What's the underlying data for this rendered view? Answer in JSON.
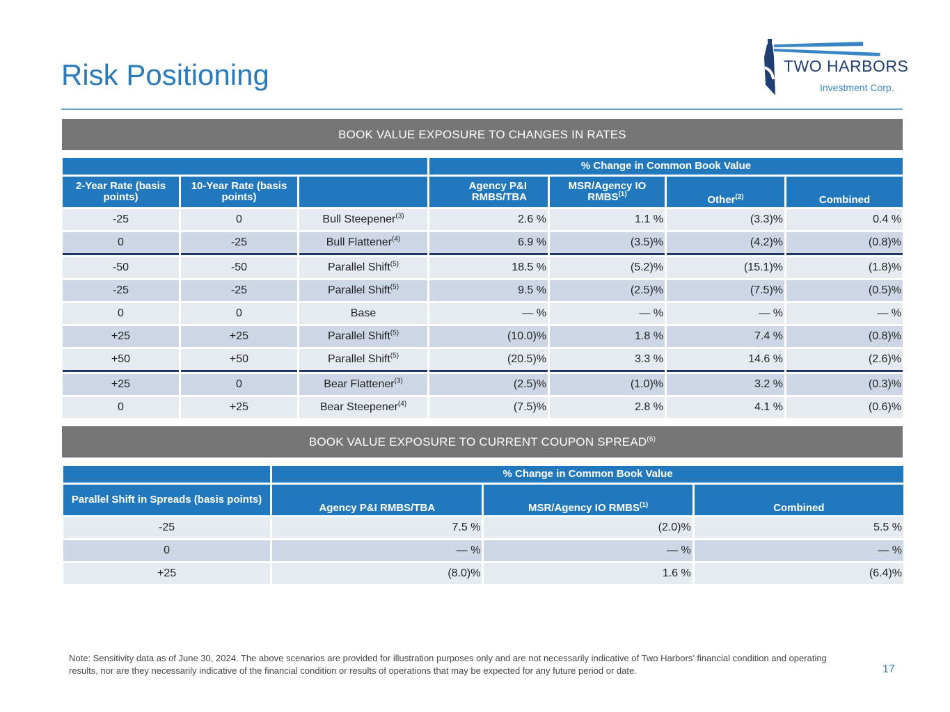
{
  "title": "Risk Positioning",
  "logo": {
    "name": "TWO HARBORS",
    "sub": "Investment Corp."
  },
  "section1": {
    "band": "BOOK VALUE EXPOSURE TO CHANGES IN RATES",
    "group_header": "% Change in Common Book Value",
    "columns": [
      "2-Year Rate (basis points)",
      "10-Year Rate (basis points)",
      "",
      "Agency P&I RMBS/TBA",
      "MSR/Agency IO RMBS",
      "Other",
      "Combined"
    ],
    "col_notes": {
      "msr": "(1)",
      "other": "(2)"
    },
    "rows": [
      [
        "-25",
        "0",
        "Bull Steepener",
        "(3)",
        "2.6 %",
        "1.1 %",
        "(3.3)%",
        "0.4 %"
      ],
      [
        "0",
        "-25",
        "Bull Flattener",
        "(4)",
        "6.9 %",
        "(3.5)%",
        "(4.2)%",
        "(0.8)%"
      ],
      [
        "-50",
        "-50",
        "Parallel Shift",
        "(5)",
        "18.5 %",
        "(5.2)%",
        "(15.1)%",
        "(1.8)%"
      ],
      [
        "-25",
        "-25",
        "Parallel Shift",
        "(5)",
        "9.5 %",
        "(2.5)%",
        "(7.5)%",
        "(0.5)%"
      ],
      [
        "0",
        "0",
        "Base",
        "",
        "— %",
        "— %",
        "— %",
        "— %"
      ],
      [
        "+25",
        "+25",
        "Parallel Shift",
        "(5)",
        "(10.0)%",
        "1.8 %",
        "7.4 %",
        "(0.8)%"
      ],
      [
        "+50",
        "+50",
        "Parallel Shift",
        "(5)",
        "(20.5)%",
        "3.3 %",
        "14.6 %",
        "(2.6)%"
      ],
      [
        "+25",
        "0",
        "Bear Flattener",
        "(3)",
        "(2.5)%",
        "(1.0)%",
        "3.2 %",
        "(0.3)%"
      ],
      [
        "0",
        "+25",
        "Bear Steepener",
        "(4)",
        "(7.5)%",
        "2.8 %",
        "4.1 %",
        "(0.6)%"
      ]
    ]
  },
  "section2": {
    "band": "BOOK VALUE EXPOSURE TO CURRENT COUPON SPREAD",
    "band_note": "(6)",
    "group_header": "% Change in Common Book Value",
    "columns": [
      "Parallel Shift in Spreads (basis points)",
      "Agency P&I RMBS/TBA",
      "MSR/Agency IO RMBS",
      "Combined"
    ],
    "msr_note": "(1)",
    "rows": [
      [
        "-25",
        "7.5 %",
        "(2.0)%",
        "5.5 %"
      ],
      [
        "0",
        "— %",
        "— %",
        "— %"
      ],
      [
        "+25",
        "(8.0)%",
        "1.6 %",
        "(6.4)%"
      ]
    ]
  },
  "note": "Note: Sensitivity data as of June 30, 2024. The above scenarios are provided for illustration purposes only and are not necessarily indicative of Two Harbors’ financial condition and operating results, nor are they necessarily indicative of the financial condition or results of operations that may be expected for any future period or date.",
  "page_number": "17"
}
